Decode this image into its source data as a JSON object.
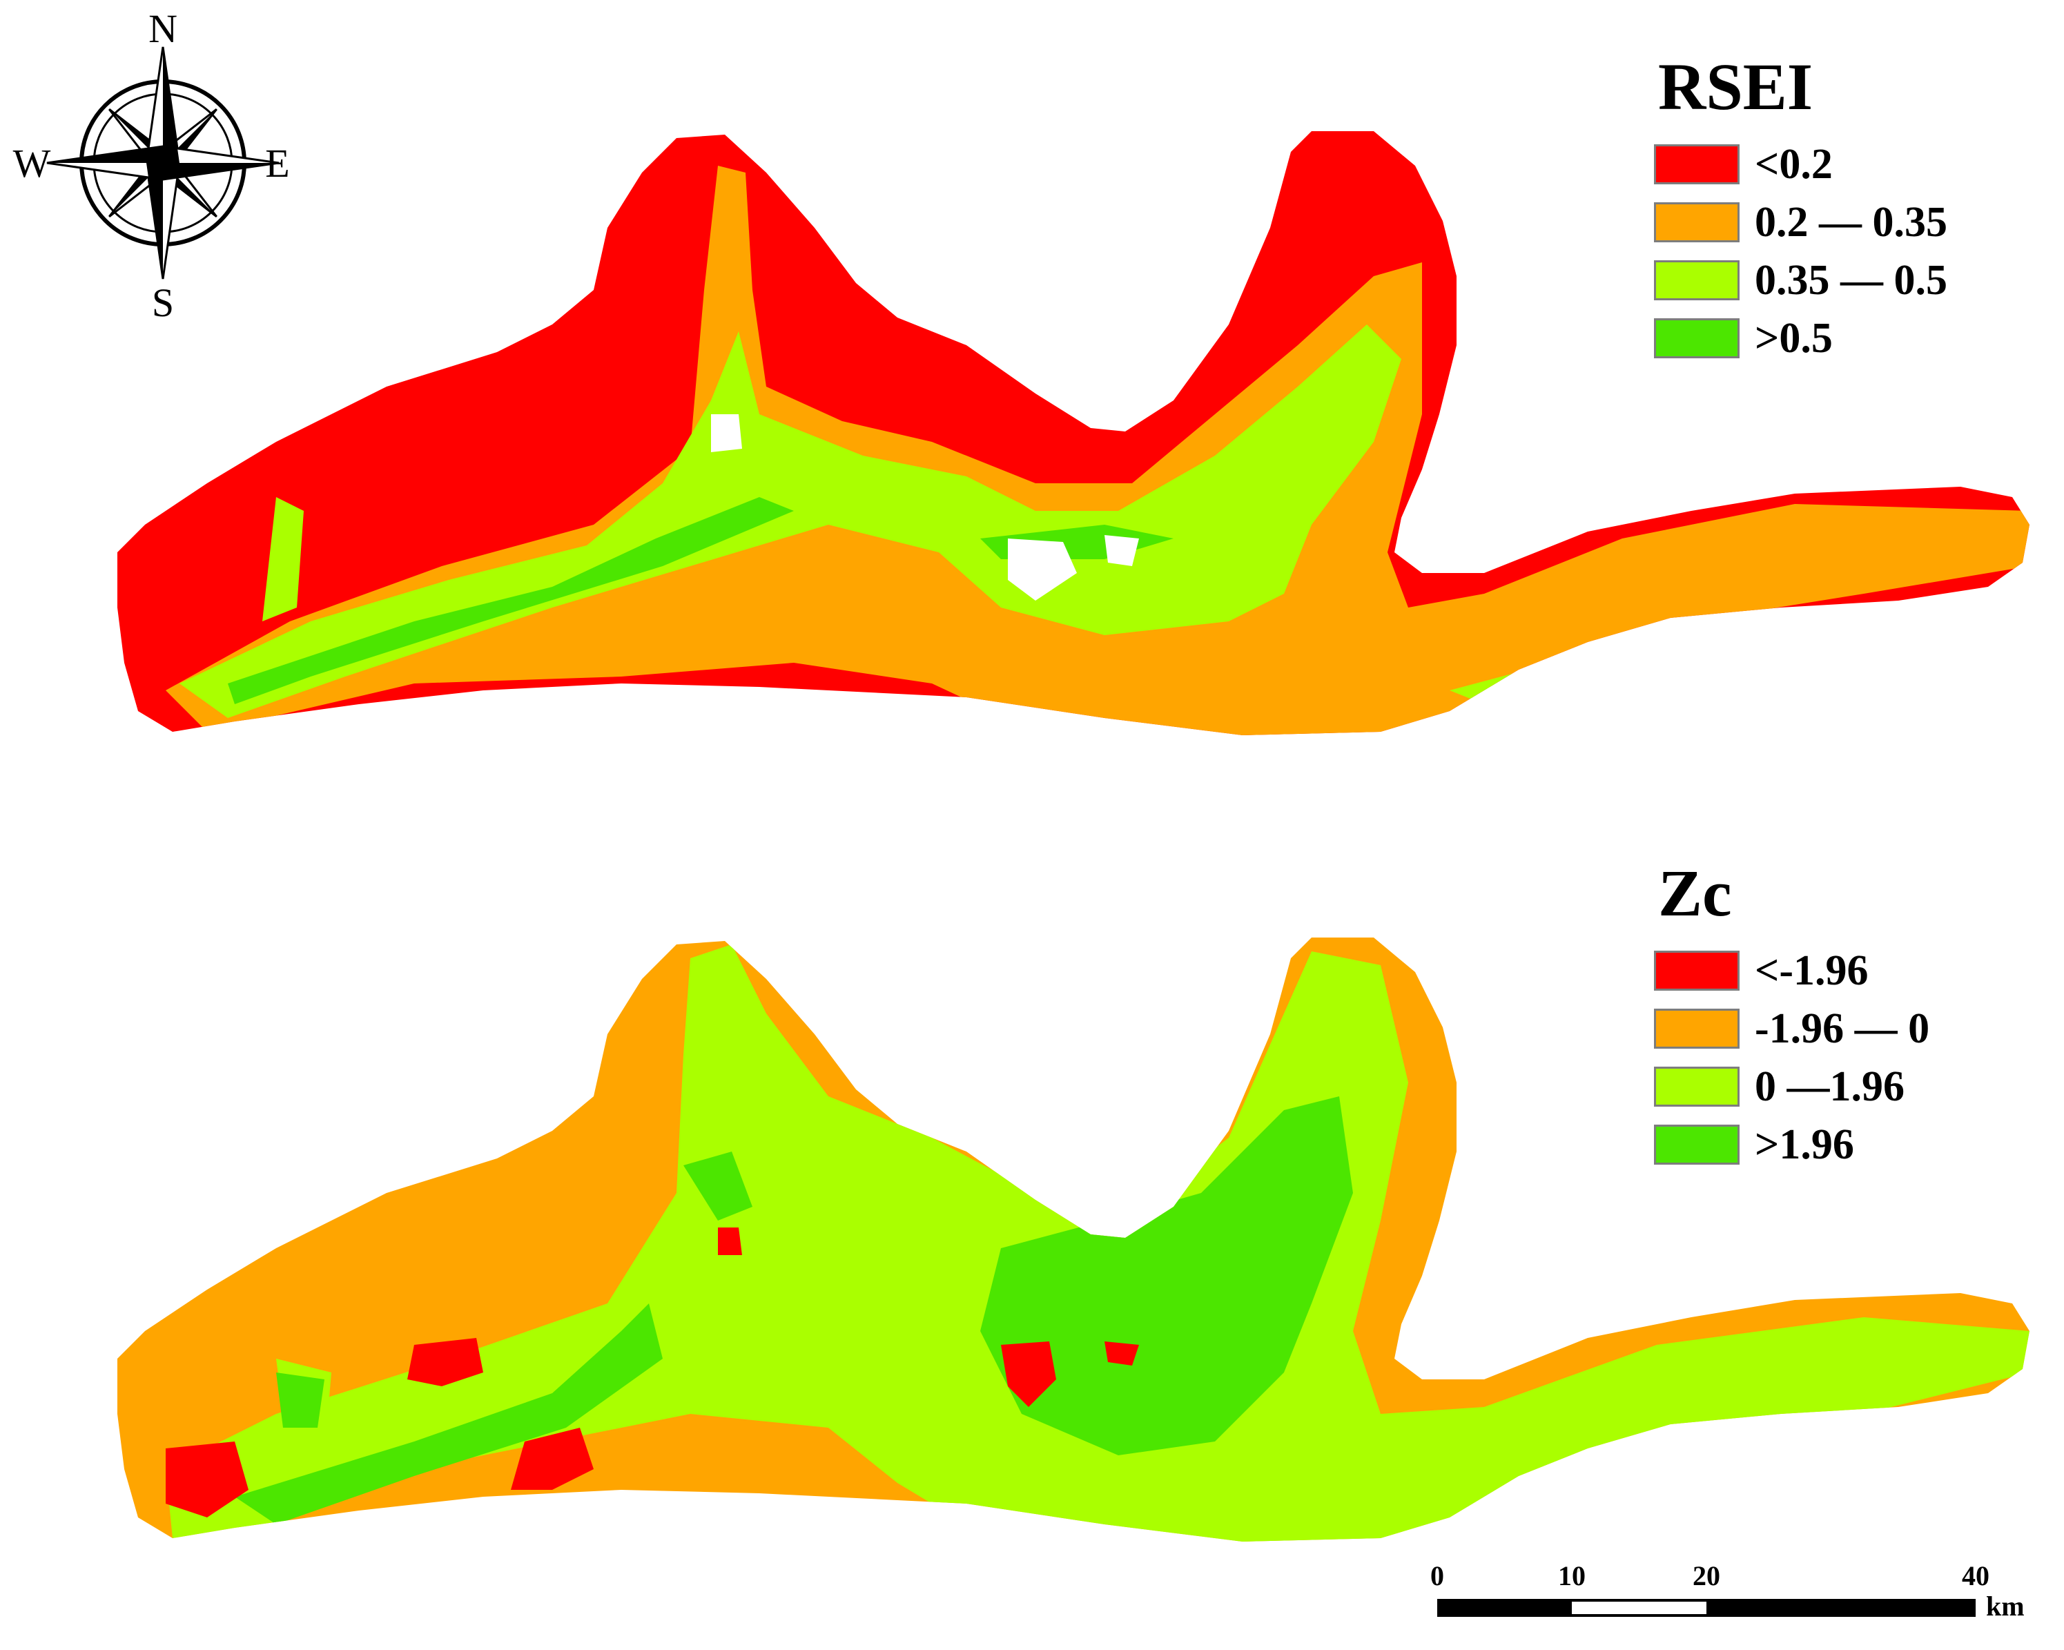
{
  "compass": {
    "north": "N",
    "south": "S",
    "east": "E",
    "west": "W"
  },
  "rsei": {
    "title": "RSEI",
    "classes": [
      {
        "label": "<0.2",
        "color": "#ff0000"
      },
      {
        "label": "0.2 — 0.35",
        "color": "#ffa500"
      },
      {
        "label": "0.35 — 0.5",
        "color": "#aaff00"
      },
      {
        "label": ">0.5",
        "color": "#4ce600"
      }
    ]
  },
  "zc": {
    "title": "Zc",
    "classes": [
      {
        "label": "<-1.96",
        "color": "#ff0000"
      },
      {
        "label": "-1.96 — 0",
        "color": "#ffa500"
      },
      {
        "label": "0 —1.96",
        "color": "#aaff00"
      },
      {
        "label": ">1.96",
        "color": "#4ce600"
      }
    ]
  },
  "scale_bar": {
    "ticks": [
      "0",
      "10",
      "20",
      "40"
    ],
    "unit": "km"
  }
}
